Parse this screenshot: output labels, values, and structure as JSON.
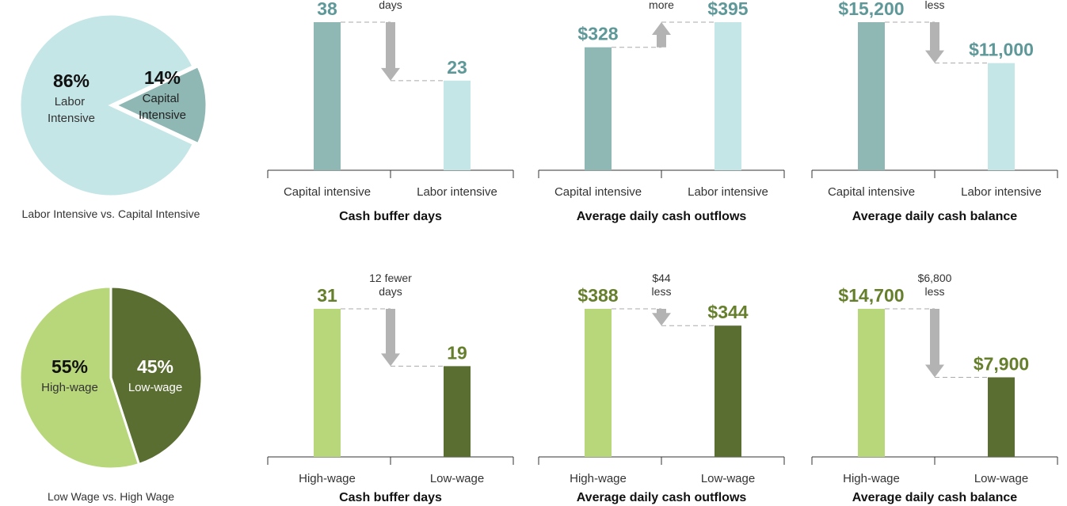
{
  "chart_data": [
    {
      "type": "pie",
      "title": "Labor Intensive vs. Capital Intensive",
      "categories": [
        "Labor Intensive",
        "Capital Intensive"
      ],
      "values": [
        86,
        14
      ],
      "value_labels": [
        "86%",
        "14%"
      ],
      "colors": [
        "#c5e6e6",
        "#8fb8b5"
      ]
    },
    {
      "type": "bar",
      "title": "Cash buffer days",
      "categories": [
        "Capital intensive",
        "Labor intensive"
      ],
      "values": [
        38,
        23
      ],
      "colors": [
        "#8fb8b5",
        "#c5e6e6"
      ],
      "label_color": "#5f9898",
      "annotation": [
        "days"
      ]
    },
    {
      "type": "bar",
      "title": "Average daily cash outflows",
      "categories": [
        "Capital intensive",
        "Labor intensive"
      ],
      "values": [
        328,
        395
      ],
      "value_labels": [
        "$328",
        "$395"
      ],
      "colors": [
        "#8fb8b5",
        "#c5e6e6"
      ],
      "label_color": "#5f9898",
      "annotation": [
        "more"
      ]
    },
    {
      "type": "bar",
      "title": "Average daily cash balance",
      "categories": [
        "Capital intensive",
        "Labor intensive"
      ],
      "values": [
        15200,
        11000
      ],
      "value_labels": [
        "$15,200",
        "$11,000"
      ],
      "colors": [
        "#8fb8b5",
        "#c5e6e6"
      ],
      "label_color": "#5f9898",
      "annotation": [
        "less"
      ]
    },
    {
      "type": "pie",
      "title": "Low Wage vs. High Wage",
      "categories": [
        "High-wage",
        "Low-wage"
      ],
      "values": [
        55,
        45
      ],
      "value_labels": [
        "55%",
        "45%"
      ],
      "colors": [
        "#b8d77a",
        "#5b6e32"
      ]
    },
    {
      "type": "bar",
      "title": "Cash buffer days",
      "categories": [
        "High-wage",
        "Low-wage"
      ],
      "values": [
        31,
        19
      ],
      "colors": [
        "#b8d77a",
        "#5b6e32"
      ],
      "label_color": "#667f2c",
      "annotation": [
        "12 fewer",
        "days"
      ]
    },
    {
      "type": "bar",
      "title": "Average daily cash outflows",
      "categories": [
        "High-wage",
        "Low-wage"
      ],
      "values": [
        388,
        344
      ],
      "value_labels": [
        "$388",
        "$344"
      ],
      "colors": [
        "#b8d77a",
        "#5b6e32"
      ],
      "label_color": "#667f2c",
      "annotation": [
        "$44",
        "less"
      ]
    },
    {
      "type": "bar",
      "title": "Average daily cash balance",
      "categories": [
        "High-wage",
        "Low-wage"
      ],
      "values": [
        14700,
        7900
      ],
      "value_labels": [
        "$14,700",
        "$7,900"
      ],
      "colors": [
        "#b8d77a",
        "#5b6e32"
      ],
      "label_color": "#667f2c",
      "annotation": [
        "$6,800",
        "less"
      ]
    }
  ]
}
